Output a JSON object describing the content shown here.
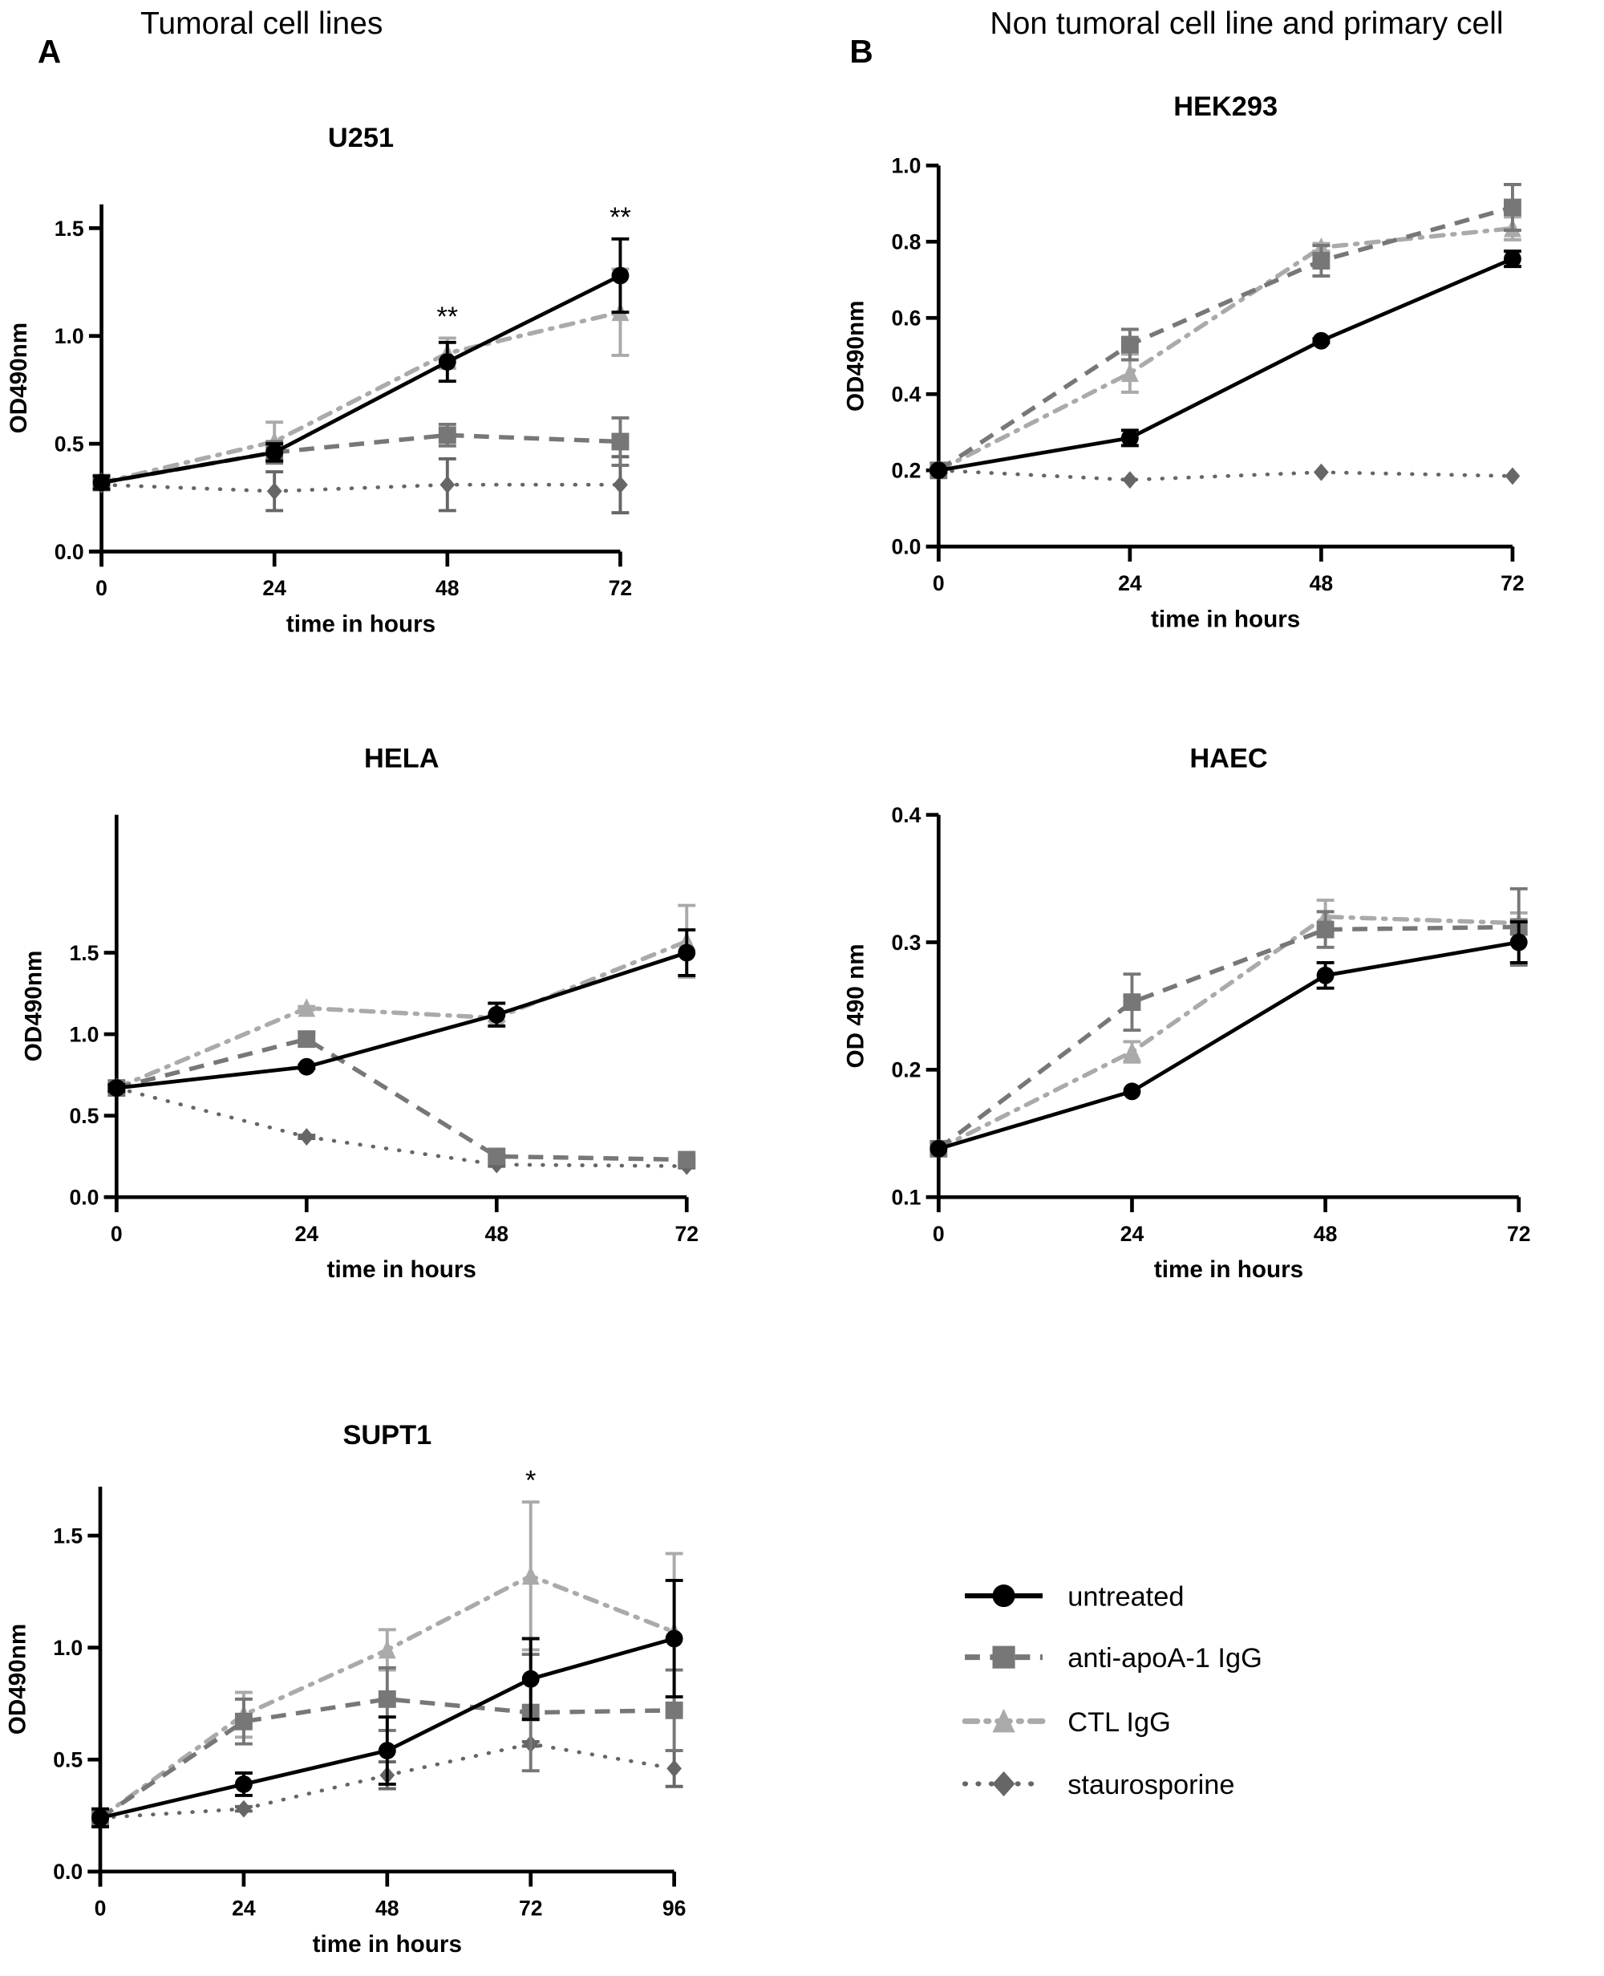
{
  "headers": {
    "A": {
      "letter": "A",
      "text": "Tumoral cell lines"
    },
    "B": {
      "letter": "B",
      "text": "Non tumoral cell line and primary cell"
    }
  },
  "legend": [
    {
      "label": "untreated",
      "color": "#000000",
      "marker": "circle",
      "line": "solid"
    },
    {
      "label": "anti-apoA-1 IgG",
      "color": "#777777",
      "marker": "square",
      "line": "dashed"
    },
    {
      "label": "CTL IgG",
      "color": "#aaaaaa",
      "marker": "triangle",
      "line": "dash-dot"
    },
    {
      "label": "staurosporine",
      "color": "#666666",
      "marker": "diamond",
      "line": "dotted"
    }
  ],
  "chart_data": [
    {
      "type": "line",
      "title": "U251",
      "xlabel": "time in hours",
      "ylabel": "OD490nm",
      "x": [
        0,
        24,
        48,
        72
      ],
      "xticks": [
        "0",
        "24",
        "48",
        "72"
      ],
      "ylim": [
        0,
        1.6
      ],
      "yticks": [
        "0.0",
        "0.5",
        "1.0",
        "1.5"
      ],
      "series": [
        {
          "name": "untreated",
          "values": [
            0.32,
            0.46,
            0.88,
            1.28
          ],
          "err": [
            0.03,
            0.04,
            0.09,
            0.17
          ]
        },
        {
          "name": "anti-apoA-1 IgG",
          "values": [
            0.32,
            0.46,
            0.54,
            0.51
          ],
          "err": [
            0.02,
            0.05,
            0.05,
            0.11
          ]
        },
        {
          "name": "CTL IgG",
          "values": [
            0.32,
            0.51,
            0.92,
            1.11
          ],
          "err": [
            0.02,
            0.09,
            0.07,
            0.2
          ]
        },
        {
          "name": "staurosporine",
          "values": [
            0.31,
            0.28,
            0.31,
            0.31
          ],
          "err": [
            0.02,
            0.09,
            0.12,
            0.13
          ]
        }
      ],
      "annotations": [
        {
          "x": 48,
          "text": "**"
        },
        {
          "x": 72,
          "text": "**"
        }
      ]
    },
    {
      "type": "line",
      "title": "HELA",
      "xlabel": "time in hours",
      "ylabel": "OD490nm",
      "x": [
        0,
        24,
        48,
        72
      ],
      "xticks": [
        "0",
        "24",
        "48",
        "72"
      ],
      "ylim": [
        0,
        1.8
      ],
      "yticks": [
        "0.0",
        "0.5",
        "1.0",
        "1.5"
      ],
      "series": [
        {
          "name": "untreated",
          "values": [
            0.67,
            0.8,
            1.12,
            1.5
          ],
          "err": [
            0.02,
            0.01,
            0.07,
            0.14
          ]
        },
        {
          "name": "anti-apoA-1 IgG",
          "values": [
            0.67,
            0.97,
            0.25,
            0.23
          ],
          "err": [
            0.02,
            0.04,
            0.01,
            0.01
          ]
        },
        {
          "name": "CTL IgG",
          "values": [
            0.67,
            1.16,
            1.1,
            1.57
          ],
          "err": [
            0.02,
            0.01,
            0.02,
            0.22
          ]
        },
        {
          "name": "staurosporine",
          "values": [
            0.67,
            0.37,
            0.2,
            0.19
          ],
          "err": [
            0.01,
            0.01,
            0.01,
            0.01
          ]
        }
      ],
      "annotations": []
    },
    {
      "type": "line",
      "title": "SUPT1",
      "xlabel": "time in hours",
      "ylabel": "OD490nm",
      "x": [
        0,
        24,
        48,
        72,
        96
      ],
      "xticks": [
        "0",
        "24",
        "48",
        "72",
        "96"
      ],
      "ylim": [
        0,
        1.7
      ],
      "yticks": [
        "0.0",
        "0.5",
        "1.0",
        "1.5"
      ],
      "series": [
        {
          "name": "untreated",
          "values": [
            0.24,
            0.39,
            0.54,
            0.86,
            1.04
          ],
          "err": [
            0.04,
            0.05,
            0.15,
            0.18,
            0.26
          ]
        },
        {
          "name": "anti-apoA-1 IgG",
          "values": [
            0.24,
            0.67,
            0.77,
            0.71,
            0.72
          ],
          "err": [
            0.03,
            0.1,
            0.14,
            0.26,
            0.18
          ]
        },
        {
          "name": "CTL IgG",
          "values": [
            0.24,
            0.7,
            0.99,
            1.32,
            1.07
          ],
          "err": [
            0.03,
            0.1,
            0.09,
            0.33,
            0.35
          ]
        },
        {
          "name": "staurosporine",
          "values": [
            0.24,
            0.28,
            0.43,
            0.57,
            0.46
          ],
          "err": [
            0.02,
            0.01,
            0.06,
            0.01,
            0.08
          ]
        }
      ],
      "annotations": [
        {
          "x": 72,
          "text": "*"
        }
      ]
    },
    {
      "type": "line",
      "title": "HEK293",
      "xlabel": "time in hours",
      "ylabel": "OD490nm",
      "x": [
        0,
        24,
        48,
        72
      ],
      "xticks": [
        "0",
        "24",
        "48",
        "72"
      ],
      "ylim": [
        0,
        1.0
      ],
      "yticks": [
        "0.0",
        "0.2",
        "0.4",
        "0.6",
        "0.8",
        "1.0"
      ],
      "series": [
        {
          "name": "untreated",
          "values": [
            0.2,
            0.285,
            0.54,
            0.755
          ],
          "err": [
            0.005,
            0.02,
            0.005,
            0.02
          ]
        },
        {
          "name": "anti-apoA-1 IgG",
          "values": [
            0.2,
            0.53,
            0.75,
            0.89
          ],
          "err": [
            0.005,
            0.04,
            0.04,
            0.06
          ]
        },
        {
          "name": "CTL IgG",
          "values": [
            0.2,
            0.455,
            0.785,
            0.835
          ],
          "err": [
            0.005,
            0.05,
            0.01,
            0.03
          ]
        },
        {
          "name": "staurosporine",
          "values": [
            0.2,
            0.175,
            0.195,
            0.185
          ],
          "err": [
            0,
            0,
            0,
            0
          ]
        }
      ],
      "annotations": []
    },
    {
      "type": "line",
      "title": "HAEC",
      "xlabel": "time in hours",
      "ylabel": "OD 490 nm",
      "x": [
        0,
        24,
        48,
        72
      ],
      "xticks": [
        "0",
        "24",
        "48",
        "72"
      ],
      "ylim": [
        0.1,
        0.4
      ],
      "yticks": [
        "0.1",
        "0.2",
        "0.3",
        "0.4"
      ],
      "series": [
        {
          "name": "untreated",
          "values": [
            0.138,
            0.183,
            0.274,
            0.3
          ],
          "err": [
            0.002,
            0.002,
            0.01,
            0.016
          ]
        },
        {
          "name": "anti-apoA-1 IgG",
          "values": [
            0.138,
            0.253,
            0.31,
            0.312
          ],
          "err": [
            0.002,
            0.022,
            0.014,
            0.03
          ]
        },
        {
          "name": "CTL IgG",
          "values": [
            0.138,
            0.214,
            0.32,
            0.315
          ],
          "err": [
            0.002,
            0.008,
            0.013,
            0.008
          ]
        }
      ],
      "annotations": []
    }
  ]
}
